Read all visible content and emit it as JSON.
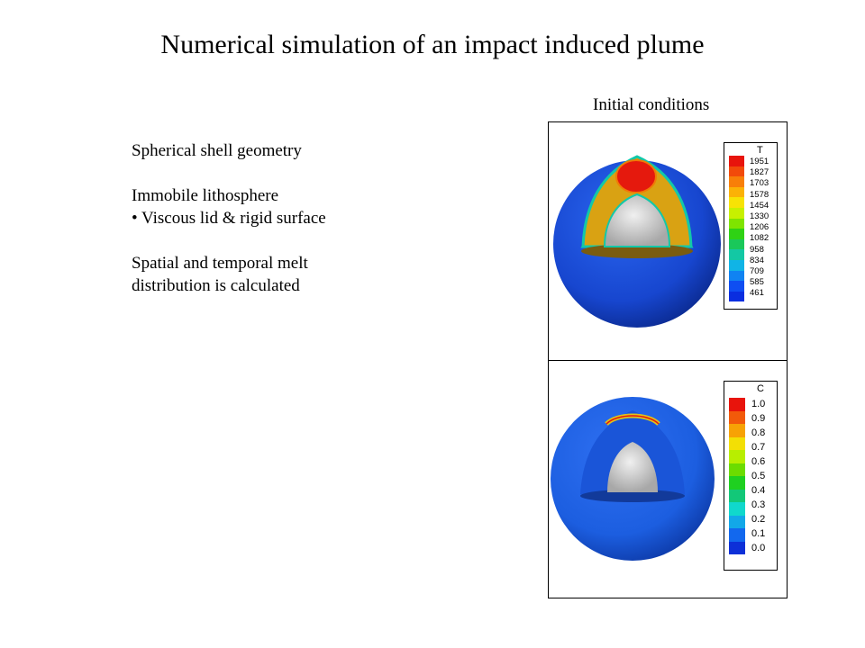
{
  "slide": {
    "title": "Numerical simulation of an impact induced plume",
    "bullets": [
      "Spherical shell geometry",
      "Immobile lithosphere",
      "• Viscous lid & rigid surface",
      "Spatial and temporal melt",
      "distribution is calculated"
    ]
  },
  "figure": {
    "subtitle": "Initial conditions",
    "temperature_legend": {
      "title": "T",
      "labels": [
        "1951",
        "1827",
        "1703",
        "1578",
        "1454",
        "1330",
        "1206",
        "1082",
        "958",
        "834",
        "709",
        "585",
        "461"
      ],
      "colors": [
        "#e8140c",
        "#f24a0a",
        "#f87f08",
        "#fbb206",
        "#f7e305",
        "#c7f000",
        "#7fe400",
        "#2fd214",
        "#1ac85a",
        "#13c8a4",
        "#10b4e6",
        "#1083f2",
        "#0f4ef2",
        "#0a2ee0"
      ]
    },
    "composition_legend": {
      "title": "C",
      "labels": [
        "1.0",
        "0.9",
        "0.8",
        "0.7",
        "0.6",
        "0.5",
        "0.4",
        "0.3",
        "0.2",
        "0.1",
        "0.0"
      ],
      "colors": [
        "#e8140c",
        "#f25a0a",
        "#f7a205",
        "#f3df05",
        "#b8ee00",
        "#6cdc00",
        "#1fd020",
        "#12c878",
        "#10d8cc",
        "#12a8e8",
        "#1268ee",
        "#0d30d8"
      ]
    },
    "sphere_colors": {
      "mantle": "#1a4fd8",
      "warm_shell": "#d9a213",
      "plume": "#e5190d",
      "core": "#d6d6d6",
      "melt_cap": "#e0c21a",
      "c_mantle": "#1c5ee0"
    }
  }
}
